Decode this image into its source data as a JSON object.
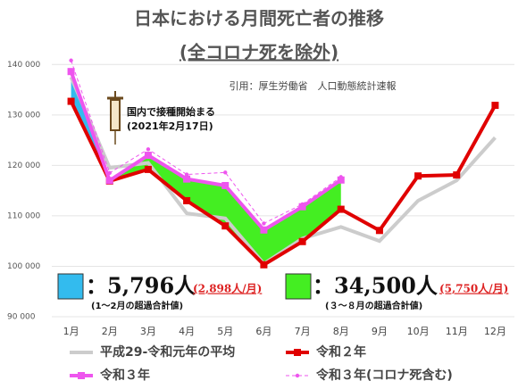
{
  "chart_data": {
    "type": "line",
    "title": "日本における月間死亡者の推移",
    "subtitle": "(全コロナ死を除外)",
    "source": "引用：厚生労働省　人口動態統計速報",
    "categories": [
      "1月",
      "2月",
      "3月",
      "4月",
      "5月",
      "6月",
      "7月",
      "8月",
      "9月",
      "10月",
      "11月",
      "12月"
    ],
    "ylim": [
      90000,
      145000
    ],
    "yticks": [
      {
        "value": 90000,
        "label": "90 000"
      },
      {
        "value": 100000,
        "label": "100 000"
      },
      {
        "value": 110000,
        "label": "110 000"
      },
      {
        "value": 120000,
        "label": "120 000"
      },
      {
        "value": 130000,
        "label": "130 000"
      },
      {
        "value": 140000,
        "label": "140 000"
      }
    ],
    "series": [
      {
        "name": "平成29-令和元年の平均",
        "color": "#cccccc",
        "values": [
          137500,
          119500,
          120500,
          110500,
          109500,
          100500,
          105500,
          107800,
          105000,
          113000,
          117000,
          125500
        ]
      },
      {
        "name": "令和２年",
        "color": "#e00000",
        "values": [
          132700,
          116900,
          119200,
          113000,
          108000,
          100300,
          104900,
          111300,
          107100,
          117900,
          118100,
          131900
        ]
      },
      {
        "name": "令和３年",
        "color": "#ee55ee",
        "values": [
          138600,
          117000,
          122000,
          117300,
          116000,
          107200,
          111800,
          117100,
          null,
          null,
          null,
          null
        ]
      },
      {
        "name": "令和３年(コロナ死含む)",
        "color": "#ee55ee",
        "dashed": true,
        "values": [
          140800,
          118500,
          123200,
          118200,
          118600,
          108500,
          112300,
          117700,
          null,
          null,
          null,
          null
        ]
      }
    ],
    "annotations": {
      "vaccine": [
        "国内で接種開始まる",
        "(2021年2月17日)"
      ],
      "excess1": {
        "color": "#33bbee",
        "total": "：5,796人",
        "per_month": "(2,898人/月)",
        "note": "(1～2月の超過合計値)"
      },
      "excess2": {
        "color": "#44ee22",
        "total": "：34,500人",
        "per_month": "(5,750人/月)",
        "note": "(３～８月の超過合計値)"
      }
    }
  }
}
